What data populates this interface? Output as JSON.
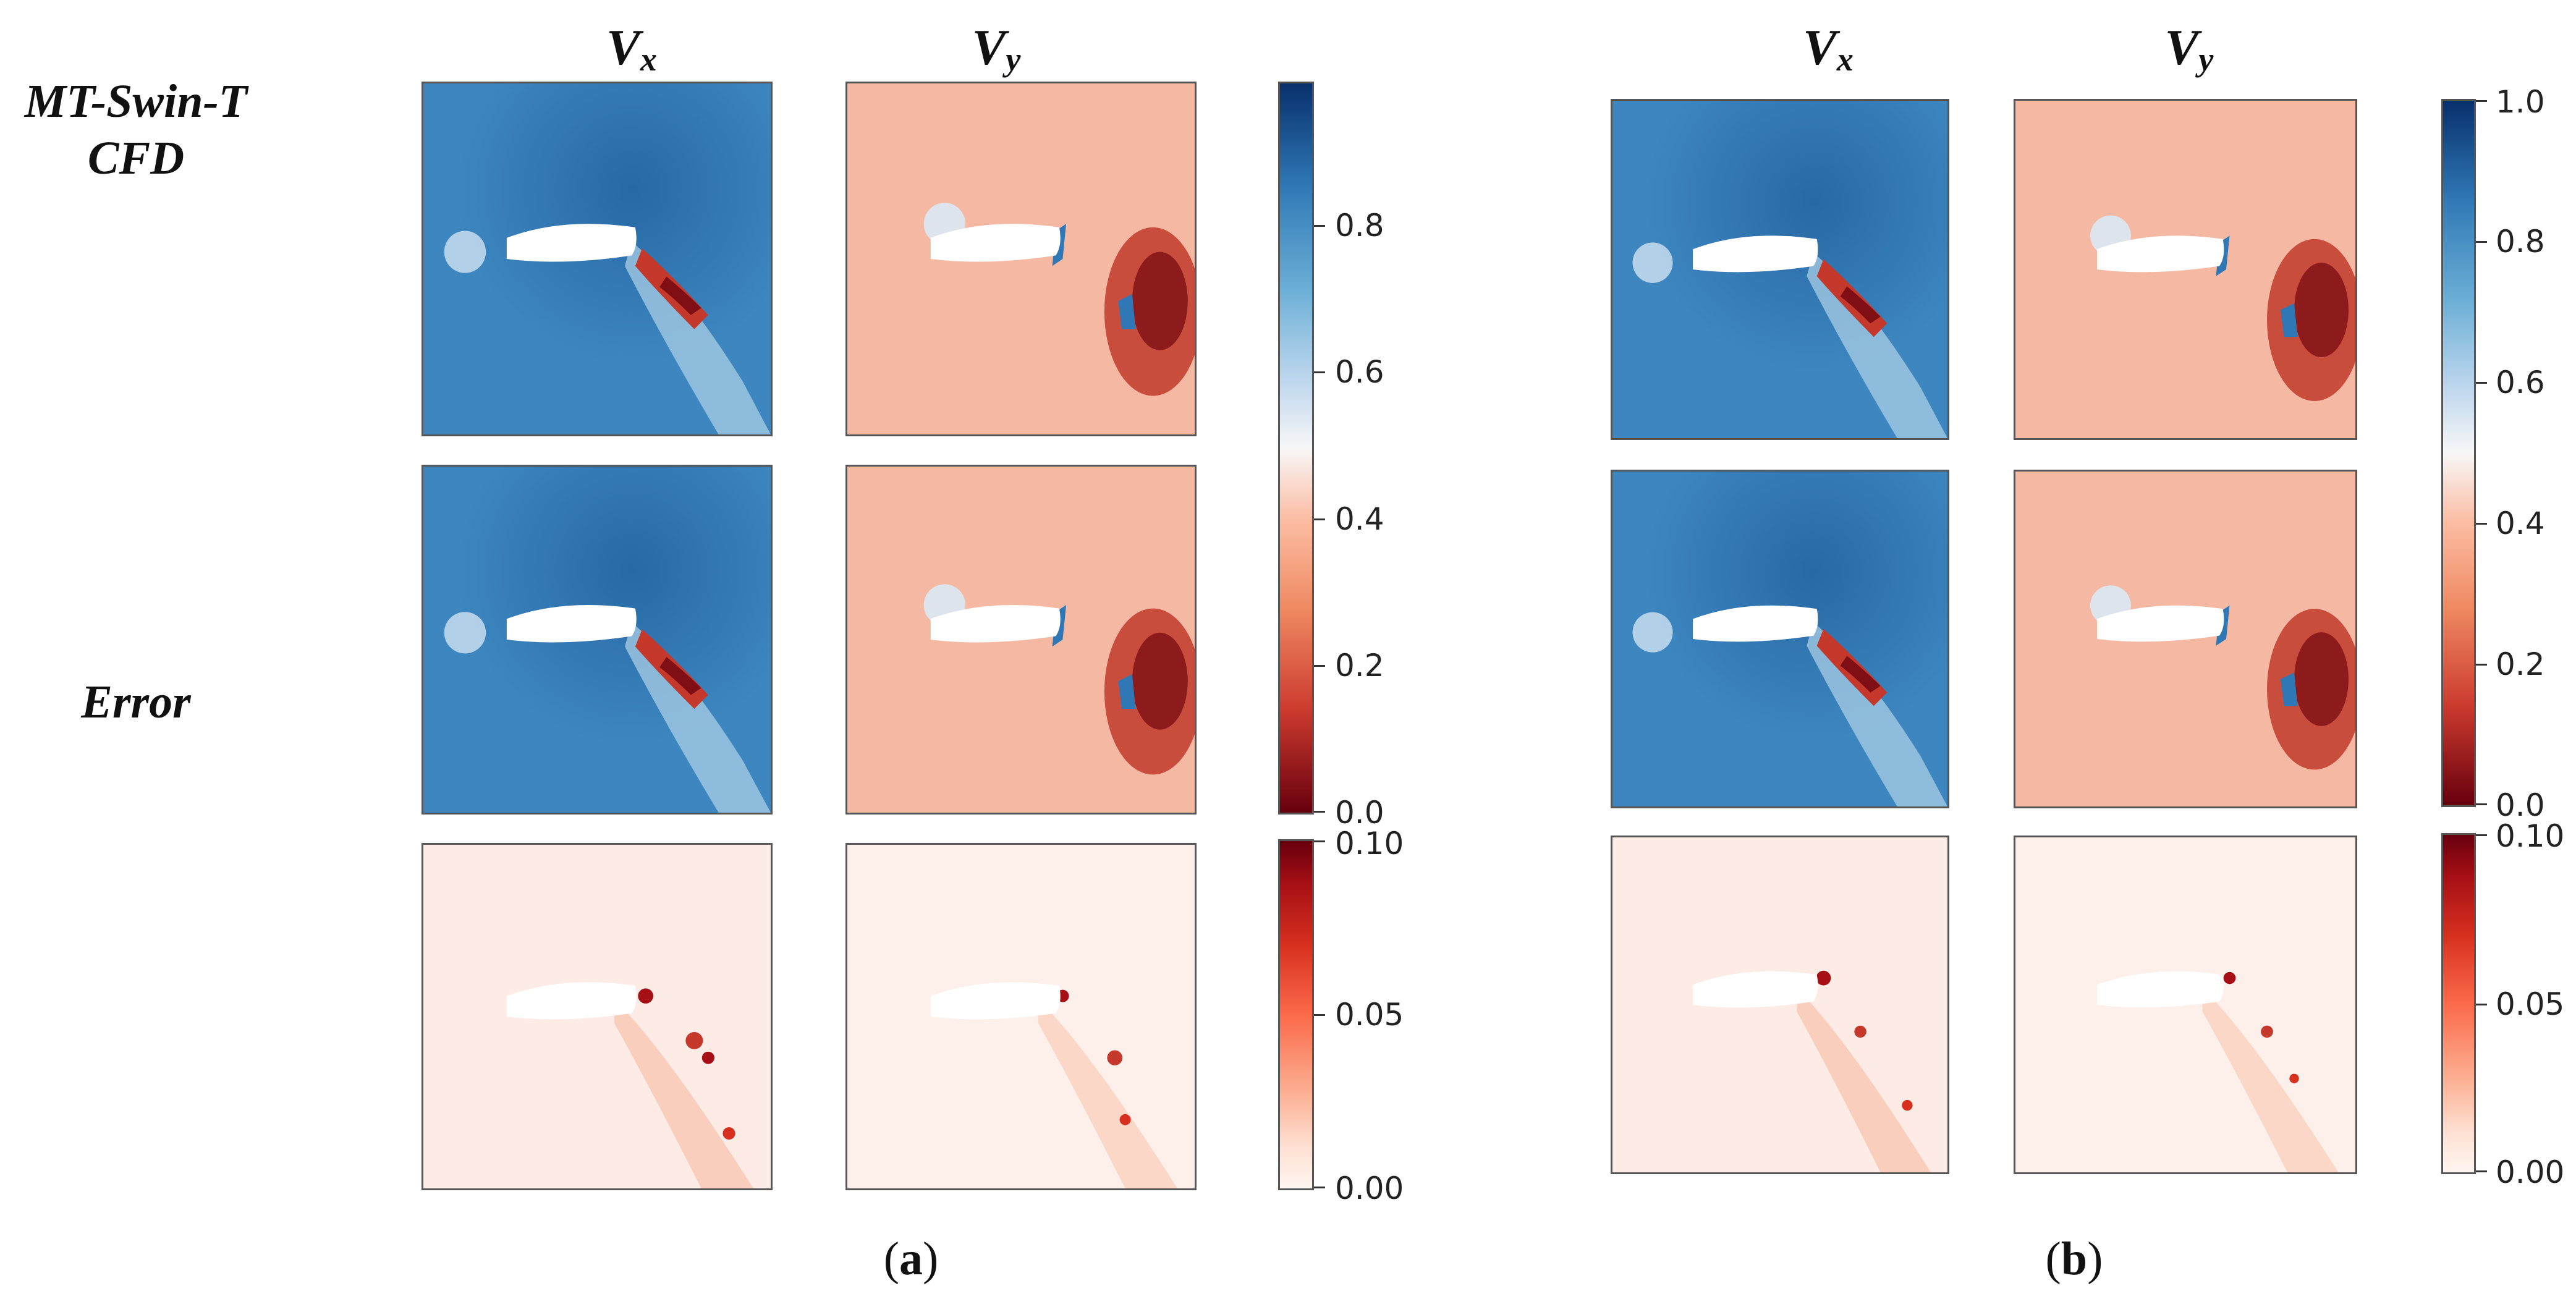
{
  "row_labels": {
    "prediction_line1": "MT-Swin-T",
    "prediction_line2": "CFD",
    "error": "Error"
  },
  "column_headers": {
    "vx_base": "V",
    "vx_sub": "x",
    "vy_base": "V",
    "vy_sub": "y"
  },
  "colorbars": {
    "a_main": [
      "0.8",
      "0.6",
      "0.4",
      "0.2",
      "0.0"
    ],
    "b_main": [
      "1.0",
      "0.8",
      "0.6",
      "0.4",
      "0.2",
      "0.0"
    ],
    "error": [
      "0.10",
      "0.05",
      "0.00"
    ]
  },
  "captions": {
    "a": "a",
    "b": "b"
  },
  "colors": {
    "vx_field": "#3d86c0",
    "vy_field": "#f5b8a2",
    "error_field": "#fdece5",
    "wake_red": "#a50f15",
    "high_blue": "#08306b"
  }
}
